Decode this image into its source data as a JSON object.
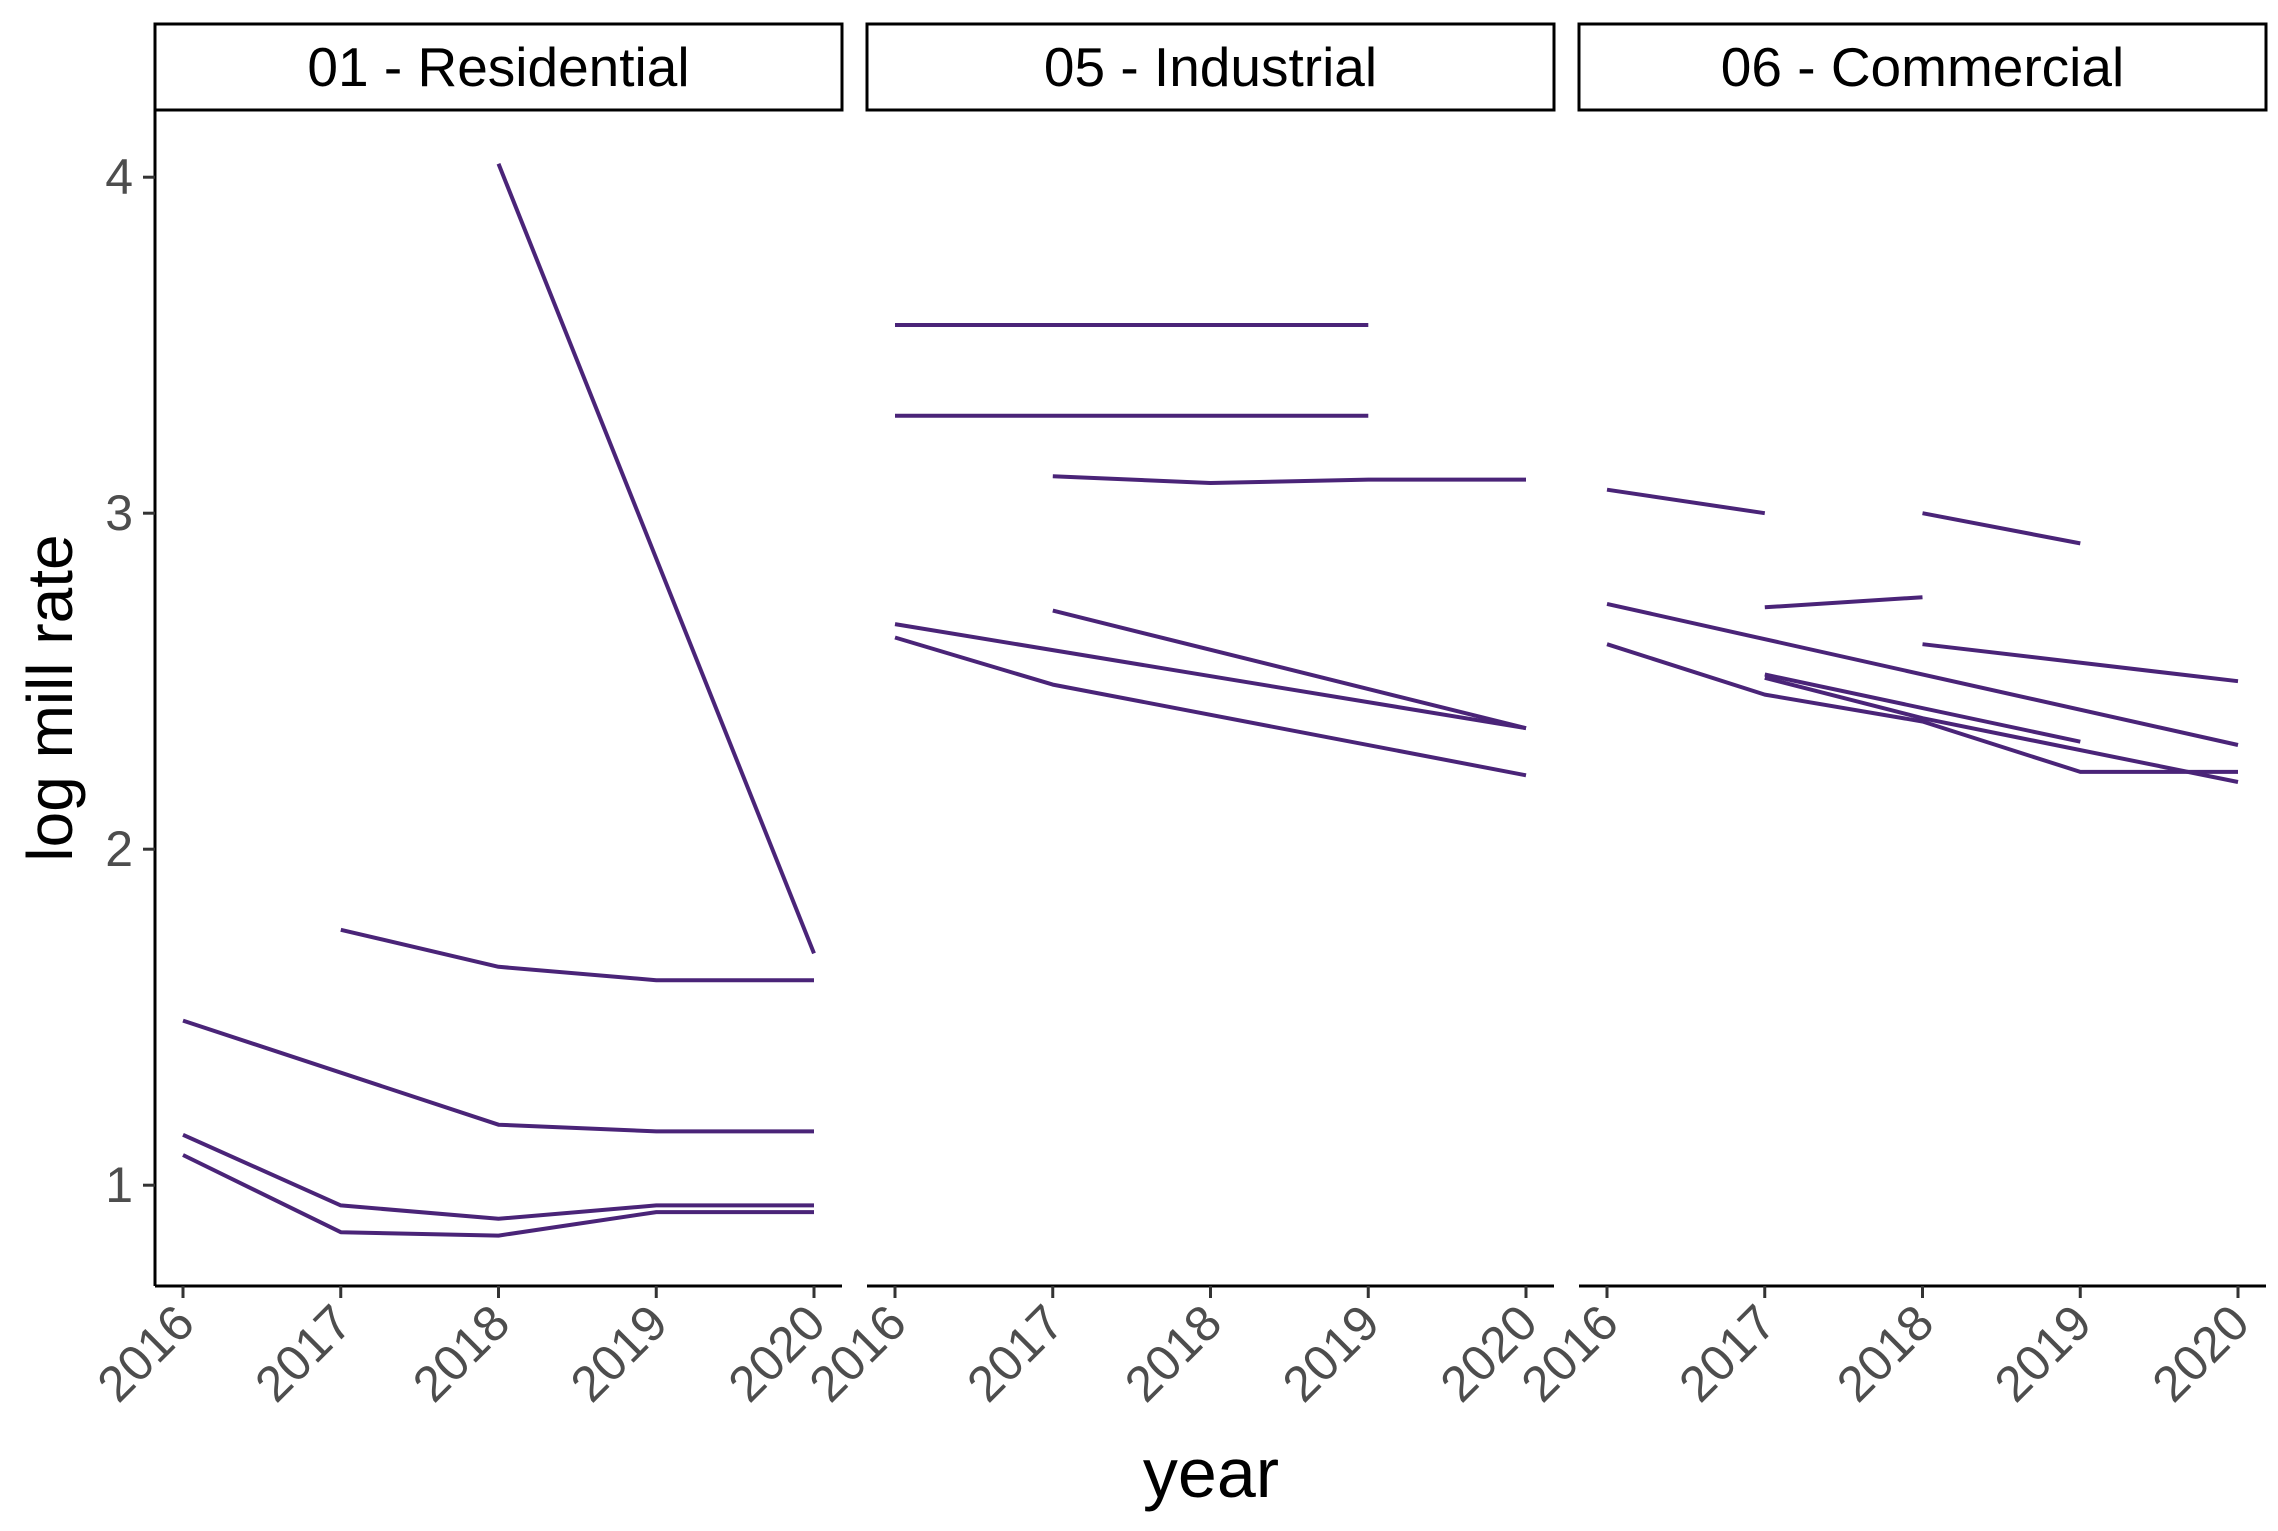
{
  "chart_data": {
    "type": "line",
    "xlabel": "year",
    "ylabel": "log mill rate",
    "x_ticks": [
      2016,
      2017,
      2018,
      2019,
      2020
    ],
    "xlim": [
      2016,
      2020
    ],
    "y_ticks": [
      1,
      2,
      3,
      4
    ],
    "ylim": [
      0.7,
      4.2
    ],
    "grid": false,
    "line_color": "#4a2478",
    "facets": [
      {
        "label": "01 - Residential",
        "lines": [
          {
            "x": [
              2018,
              2020
            ],
            "y": [
              4.04,
              1.69
            ]
          },
          {
            "x": [
              2017,
              2018,
              2019,
              2020
            ],
            "y": [
              1.76,
              1.65,
              1.61,
              1.61
            ]
          },
          {
            "x": [
              2016,
              2018,
              2019,
              2020
            ],
            "y": [
              1.49,
              1.18,
              1.16,
              1.16
            ]
          },
          {
            "x": [
              2016,
              2017,
              2018,
              2019,
              2020
            ],
            "y": [
              1.15,
              0.94,
              0.9,
              0.94,
              0.94
            ]
          },
          {
            "x": [
              2016,
              2017,
              2018,
              2019,
              2020
            ],
            "y": [
              1.09,
              0.86,
              0.85,
              0.92,
              0.92
            ]
          }
        ]
      },
      {
        "label": "05 - Industrial",
        "lines": [
          {
            "x": [
              2016,
              2019
            ],
            "y": [
              3.56,
              3.56
            ]
          },
          {
            "x": [
              2016,
              2019
            ],
            "y": [
              3.29,
              3.29
            ]
          },
          {
            "x": [
              2017,
              2018,
              2019,
              2020
            ],
            "y": [
              3.11,
              3.09,
              3.1,
              3.1
            ]
          },
          {
            "x": [
              2016,
              2020
            ],
            "y": [
              2.67,
              2.36
            ]
          },
          {
            "x": [
              2017,
              2020
            ],
            "y": [
              2.71,
              2.36
            ]
          },
          {
            "x": [
              2016,
              2017,
              2020
            ],
            "y": [
              2.63,
              2.49,
              2.22
            ]
          }
        ]
      },
      {
        "label": "06 - Commercial",
        "lines": [
          {
            "x": [
              2016,
              2017
            ],
            "y": [
              3.07,
              3.0
            ]
          },
          {
            "x": [
              2018,
              2019
            ],
            "y": [
              3.0,
              2.91
            ]
          },
          {
            "x": [
              2017,
              2018
            ],
            "y": [
              2.72,
              2.75
            ]
          },
          {
            "x": [
              2018,
              2020
            ],
            "y": [
              2.61,
              2.5
            ]
          },
          {
            "x": [
              2016,
              2020
            ],
            "y": [
              2.73,
              2.31
            ]
          },
          {
            "x": [
              2016,
              2017,
              2018,
              2019,
              2020
            ],
            "y": [
              2.61,
              2.46,
              2.38,
              2.23,
              2.23
            ]
          },
          {
            "x": [
              2017,
              2019
            ],
            "y": [
              2.52,
              2.32
            ]
          },
          {
            "x": [
              2017,
              2018,
              2020
            ],
            "y": [
              2.51,
              2.39,
              2.2
            ]
          }
        ]
      }
    ]
  }
}
